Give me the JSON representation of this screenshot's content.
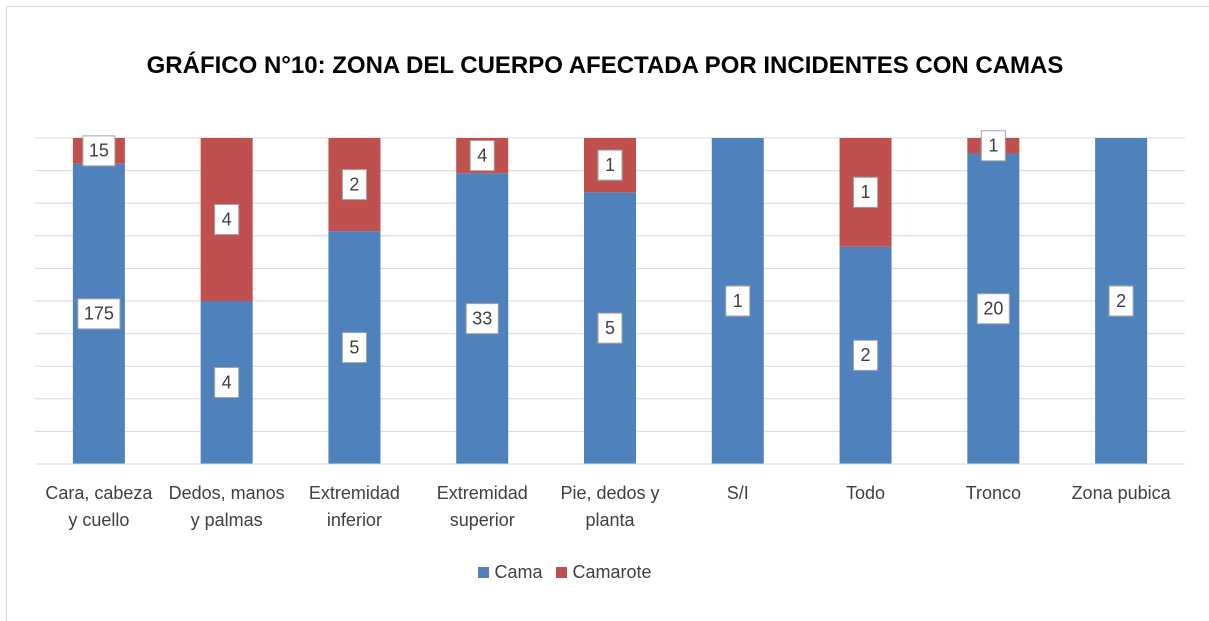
{
  "chart_data": {
    "type": "bar",
    "stacking": "percent",
    "title": "GRÁFICO N°10: ZONA DEL CUERPO AFECTADA POR INCIDENTES CON CAMAS",
    "categories": [
      "Cara, cabeza y cuello",
      "Dedos, manos y palmas",
      "Extremidad inferior",
      "Extremidad superior",
      "Pie, dedos y planta",
      "S/I",
      "Todo",
      "Tronco",
      "Zona pubica"
    ],
    "series": [
      {
        "name": "Cama",
        "color": "#4f81bd",
        "values": [
          175,
          4,
          5,
          33,
          5,
          1,
          2,
          20,
          2
        ]
      },
      {
        "name": "Camarote",
        "color": "#c0504d",
        "values": [
          15,
          4,
          2,
          4,
          1,
          null,
          1,
          1,
          null
        ]
      }
    ],
    "ylim": [
      0,
      100
    ],
    "yticks": [
      0,
      10,
      20,
      30,
      40,
      50,
      60,
      70,
      80,
      90,
      100
    ],
    "grid": true,
    "legend": "bottom"
  }
}
